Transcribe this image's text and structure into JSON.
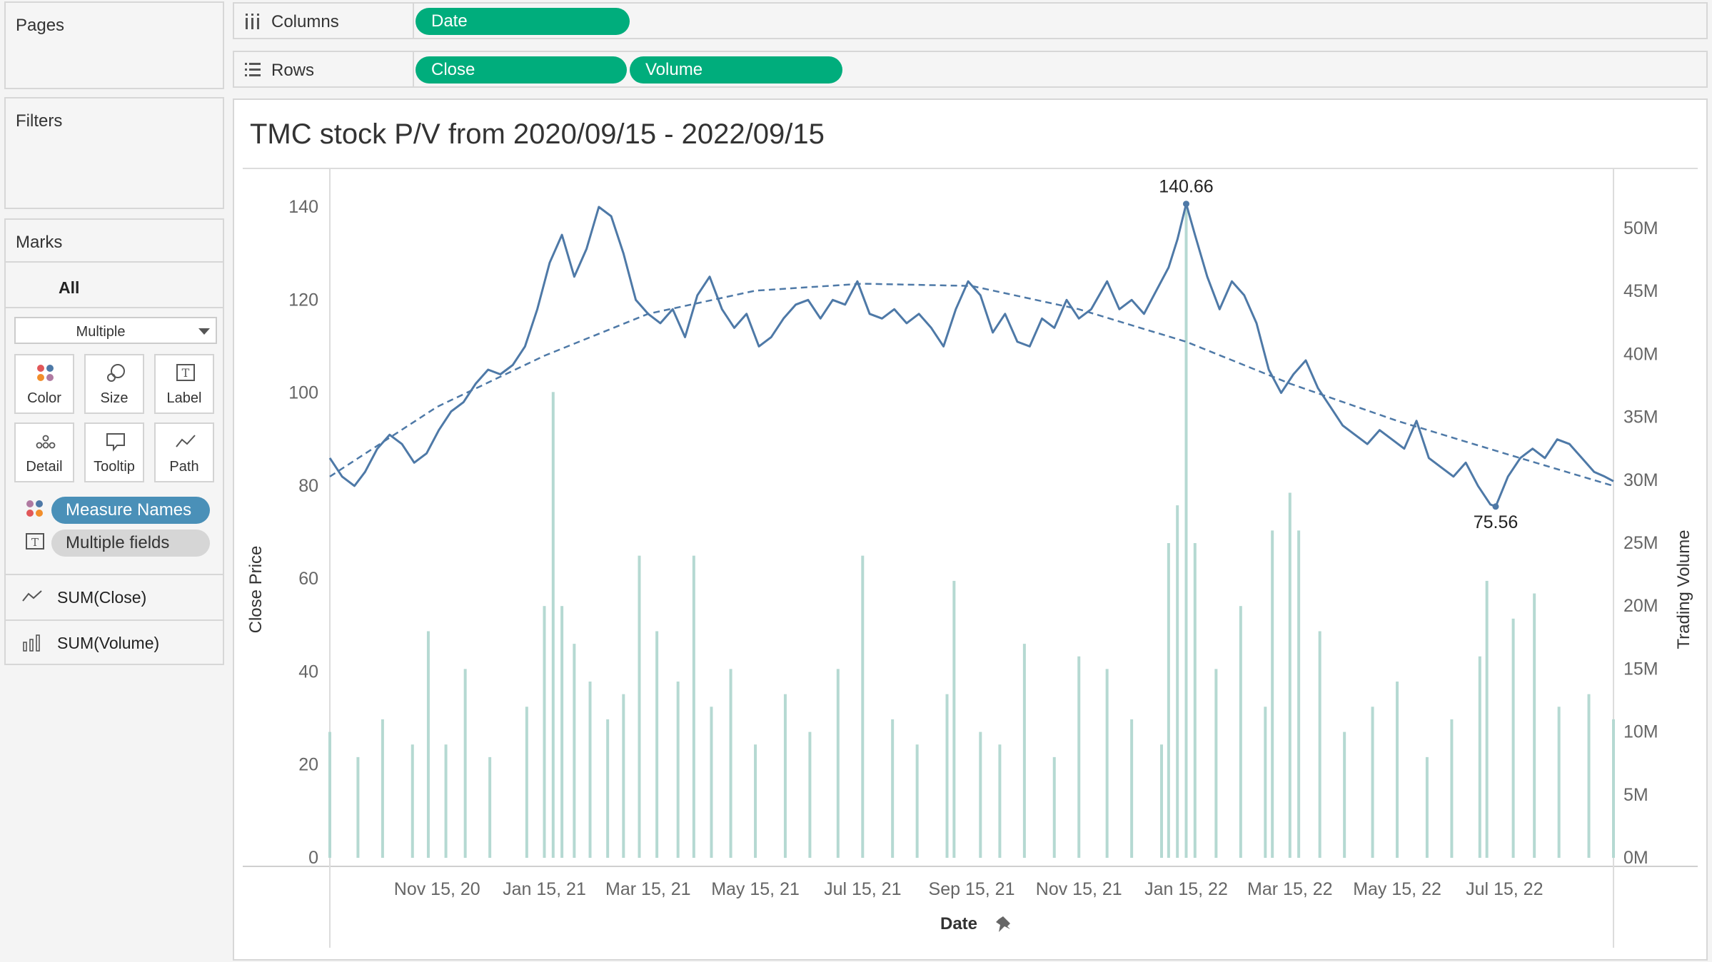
{
  "left_panel": {
    "pages": {
      "title": "Pages"
    },
    "filters": {
      "title": "Filters"
    },
    "marks": {
      "title": "Marks",
      "all_label": "All",
      "mark_type": "Multiple",
      "buttons": [
        {
          "label": "Color",
          "icon": "color-dots-icon"
        },
        {
          "label": "Size",
          "icon": "size-icon"
        },
        {
          "label": "Label",
          "icon": "label-icon"
        },
        {
          "label": "Detail",
          "icon": "detail-icon"
        },
        {
          "label": "Tooltip",
          "icon": "tooltip-icon"
        },
        {
          "label": "Path",
          "icon": "path-icon"
        }
      ],
      "pills": [
        {
          "label": "Measure Names",
          "icon": "color-dots-icon"
        },
        {
          "label": "Multiple fields",
          "icon": "label-icon"
        }
      ],
      "measures": [
        {
          "label": "SUM(Close)",
          "icon": "line-icon"
        },
        {
          "label": "SUM(Volume)",
          "icon": "bar-icon"
        }
      ]
    }
  },
  "shelves": {
    "columns": {
      "label": "Columns",
      "pills": [
        "Date"
      ]
    },
    "rows": {
      "label": "Rows",
      "pills": [
        "Close",
        "Volume"
      ]
    }
  },
  "colors": {
    "pill_green": "#00ad7c",
    "measure_names_pill": "#4a90b8",
    "multiple_fields_pill": "#d6d6d6",
    "price_line": "#4e79a7",
    "volume_bars": "#b5d9d2",
    "trend_line": "#4e79a7"
  },
  "chart_data": {
    "type": "line",
    "title": "TMC stock P/V from 2020/09/15 - 2022/09/15",
    "xlabel": "Date",
    "x_range": [
      "2020-09-15",
      "2022-09-15"
    ],
    "x_ticks": [
      "Nov 15, 20",
      "Jan 15, 21",
      "Mar 15, 21",
      "May 15, 21",
      "Jul 15, 21",
      "Sep 15, 21",
      "Nov 15, 21",
      "Jan 15, 22",
      "Mar 15, 22",
      "May 15, 22",
      "Jul 15, 22"
    ],
    "y_left": {
      "label": "Close Price",
      "range": [
        0,
        150
      ],
      "ticks": [
        "0",
        "20",
        "40",
        "60",
        "80",
        "100",
        "120",
        "140"
      ]
    },
    "y_right": {
      "label": "Trading Volume",
      "range": [
        0,
        55000000
      ],
      "ticks": [
        "0M",
        "5M",
        "10M",
        "15M",
        "20M",
        "25M",
        "30M",
        "35M",
        "40M",
        "45M",
        "50M"
      ]
    },
    "annotations": [
      {
        "text": "140.66",
        "date": "2022-01-15",
        "value": 140.66
      },
      {
        "text": "75.56",
        "date": "2022-07-10",
        "value": 75.56
      }
    ],
    "series": [
      {
        "name": "Close",
        "type": "line",
        "axis": "left",
        "points": [
          [
            "2020-09-15",
            86
          ],
          [
            "2020-09-22",
            82
          ],
          [
            "2020-09-29",
            80
          ],
          [
            "2020-10-05",
            83
          ],
          [
            "2020-10-12",
            88
          ],
          [
            "2020-10-19",
            91
          ],
          [
            "2020-10-26",
            89
          ],
          [
            "2020-11-02",
            85
          ],
          [
            "2020-11-09",
            87
          ],
          [
            "2020-11-16",
            92
          ],
          [
            "2020-11-23",
            96
          ],
          [
            "2020-11-30",
            98
          ],
          [
            "2020-12-07",
            102
          ],
          [
            "2020-12-14",
            105
          ],
          [
            "2020-12-21",
            104
          ],
          [
            "2020-12-28",
            106
          ],
          [
            "2021-01-04",
            110
          ],
          [
            "2021-01-11",
            118
          ],
          [
            "2021-01-18",
            128
          ],
          [
            "2021-01-25",
            134
          ],
          [
            "2021-02-01",
            125
          ],
          [
            "2021-02-08",
            131
          ],
          [
            "2021-02-15",
            140
          ],
          [
            "2021-02-22",
            138
          ],
          [
            "2021-03-01",
            130
          ],
          [
            "2021-03-08",
            120
          ],
          [
            "2021-03-15",
            117
          ],
          [
            "2021-03-22",
            115
          ],
          [
            "2021-03-29",
            118
          ],
          [
            "2021-04-05",
            112
          ],
          [
            "2021-04-12",
            121
          ],
          [
            "2021-04-19",
            125
          ],
          [
            "2021-04-26",
            118
          ],
          [
            "2021-05-03",
            114
          ],
          [
            "2021-05-10",
            117
          ],
          [
            "2021-05-17",
            110
          ],
          [
            "2021-05-24",
            112
          ],
          [
            "2021-05-31",
            116
          ],
          [
            "2021-06-07",
            119
          ],
          [
            "2021-06-14",
            120
          ],
          [
            "2021-06-21",
            116
          ],
          [
            "2021-06-28",
            120
          ],
          [
            "2021-07-05",
            119
          ],
          [
            "2021-07-12",
            124
          ],
          [
            "2021-07-19",
            117
          ],
          [
            "2021-07-26",
            116
          ],
          [
            "2021-08-02",
            118
          ],
          [
            "2021-08-09",
            115
          ],
          [
            "2021-08-16",
            117
          ],
          [
            "2021-08-23",
            114
          ],
          [
            "2021-08-30",
            110
          ],
          [
            "2021-09-06",
            118
          ],
          [
            "2021-09-13",
            124
          ],
          [
            "2021-09-20",
            121
          ],
          [
            "2021-09-27",
            113
          ],
          [
            "2021-10-04",
            117
          ],
          [
            "2021-10-11",
            111
          ],
          [
            "2021-10-18",
            110
          ],
          [
            "2021-10-25",
            116
          ],
          [
            "2021-11-01",
            114
          ],
          [
            "2021-11-08",
            120
          ],
          [
            "2021-11-15",
            116
          ],
          [
            "2021-11-22",
            118
          ],
          [
            "2021-12-01",
            124
          ],
          [
            "2021-12-08",
            118
          ],
          [
            "2021-12-15",
            120
          ],
          [
            "2021-12-22",
            117
          ],
          [
            "2021-12-29",
            122
          ],
          [
            "2022-01-05",
            127
          ],
          [
            "2022-01-10",
            133
          ],
          [
            "2022-01-15",
            140.66
          ],
          [
            "2022-01-20",
            134
          ],
          [
            "2022-01-27",
            125
          ],
          [
            "2022-02-03",
            118
          ],
          [
            "2022-02-10",
            124
          ],
          [
            "2022-02-17",
            121
          ],
          [
            "2022-02-24",
            115
          ],
          [
            "2022-03-03",
            105
          ],
          [
            "2022-03-10",
            100
          ],
          [
            "2022-03-17",
            104
          ],
          [
            "2022-03-24",
            107
          ],
          [
            "2022-03-31",
            101
          ],
          [
            "2022-04-07",
            97
          ],
          [
            "2022-04-14",
            93
          ],
          [
            "2022-04-21",
            91
          ],
          [
            "2022-04-28",
            89
          ],
          [
            "2022-05-05",
            92
          ],
          [
            "2022-05-12",
            90
          ],
          [
            "2022-05-19",
            88
          ],
          [
            "2022-05-26",
            94
          ],
          [
            "2022-06-02",
            86
          ],
          [
            "2022-06-09",
            84
          ],
          [
            "2022-06-16",
            82
          ],
          [
            "2022-06-23",
            85
          ],
          [
            "2022-06-30",
            80
          ],
          [
            "2022-07-07",
            76
          ],
          [
            "2022-07-10",
            75.56
          ],
          [
            "2022-07-17",
            82
          ],
          [
            "2022-07-24",
            86
          ],
          [
            "2022-07-31",
            88
          ],
          [
            "2022-08-07",
            86
          ],
          [
            "2022-08-14",
            90
          ],
          [
            "2022-08-21",
            89
          ],
          [
            "2022-08-28",
            86
          ],
          [
            "2022-09-04",
            83
          ],
          [
            "2022-09-10",
            82
          ],
          [
            "2022-09-15",
            81
          ]
        ]
      },
      {
        "name": "Close trend",
        "type": "polynomial",
        "axis": "left",
        "points": [
          [
            "2020-09-15",
            82
          ],
          [
            "2020-11-15",
            97
          ],
          [
            "2021-01-15",
            108
          ],
          [
            "2021-03-15",
            117
          ],
          [
            "2021-05-15",
            122
          ],
          [
            "2021-07-15",
            123.5
          ],
          [
            "2021-09-15",
            123
          ],
          [
            "2021-11-15",
            118
          ],
          [
            "2022-01-15",
            111
          ],
          [
            "2022-03-15",
            102
          ],
          [
            "2022-05-15",
            94
          ],
          [
            "2022-07-15",
            87
          ],
          [
            "2022-09-15",
            80
          ]
        ]
      },
      {
        "name": "Volume",
        "type": "bar",
        "axis": "right",
        "points": [
          [
            "2020-09-15",
            10000000
          ],
          [
            "2020-10-01",
            8000000
          ],
          [
            "2020-10-15",
            11000000
          ],
          [
            "2020-11-01",
            9000000
          ],
          [
            "2020-11-10",
            18000000
          ],
          [
            "2020-11-20",
            9000000
          ],
          [
            "2020-12-01",
            15000000
          ],
          [
            "2020-12-15",
            8000000
          ],
          [
            "2021-01-05",
            12000000
          ],
          [
            "2021-01-15",
            20000000
          ],
          [
            "2021-01-20",
            37000000
          ],
          [
            "2021-01-25",
            20000000
          ],
          [
            "2021-02-01",
            17000000
          ],
          [
            "2021-02-10",
            14000000
          ],
          [
            "2021-02-20",
            11000000
          ],
          [
            "2021-03-01",
            13000000
          ],
          [
            "2021-03-10",
            24000000
          ],
          [
            "2021-03-20",
            18000000
          ],
          [
            "2021-04-01",
            14000000
          ],
          [
            "2021-04-10",
            24000000
          ],
          [
            "2021-04-20",
            12000000
          ],
          [
            "2021-05-01",
            15000000
          ],
          [
            "2021-05-15",
            9000000
          ],
          [
            "2021-06-01",
            13000000
          ],
          [
            "2021-06-15",
            10000000
          ],
          [
            "2021-07-01",
            15000000
          ],
          [
            "2021-07-15",
            24000000
          ],
          [
            "2021-08-01",
            11000000
          ],
          [
            "2021-08-15",
            9000000
          ],
          [
            "2021-09-01",
            13000000
          ],
          [
            "2021-09-05",
            22000000
          ],
          [
            "2021-09-20",
            10000000
          ],
          [
            "2021-10-01",
            9000000
          ],
          [
            "2021-10-15",
            17000000
          ],
          [
            "2021-11-01",
            8000000
          ],
          [
            "2021-11-15",
            16000000
          ],
          [
            "2021-12-01",
            15000000
          ],
          [
            "2021-12-15",
            11000000
          ],
          [
            "2022-01-01",
            9000000
          ],
          [
            "2022-01-05",
            25000000
          ],
          [
            "2022-01-10",
            28000000
          ],
          [
            "2022-01-15",
            52000000
          ],
          [
            "2022-01-20",
            25000000
          ],
          [
            "2022-02-01",
            15000000
          ],
          [
            "2022-02-15",
            20000000
          ],
          [
            "2022-03-01",
            12000000
          ],
          [
            "2022-03-05",
            26000000
          ],
          [
            "2022-03-15",
            29000000
          ],
          [
            "2022-03-20",
            26000000
          ],
          [
            "2022-04-01",
            18000000
          ],
          [
            "2022-04-15",
            10000000
          ],
          [
            "2022-05-01",
            12000000
          ],
          [
            "2022-05-15",
            14000000
          ],
          [
            "2022-06-01",
            8000000
          ],
          [
            "2022-06-15",
            11000000
          ],
          [
            "2022-07-01",
            16000000
          ],
          [
            "2022-07-05",
            22000000
          ],
          [
            "2022-07-20",
            19000000
          ],
          [
            "2022-08-01",
            21000000
          ],
          [
            "2022-08-15",
            12000000
          ],
          [
            "2022-09-01",
            13000000
          ],
          [
            "2022-09-15",
            11000000
          ]
        ]
      }
    ]
  }
}
